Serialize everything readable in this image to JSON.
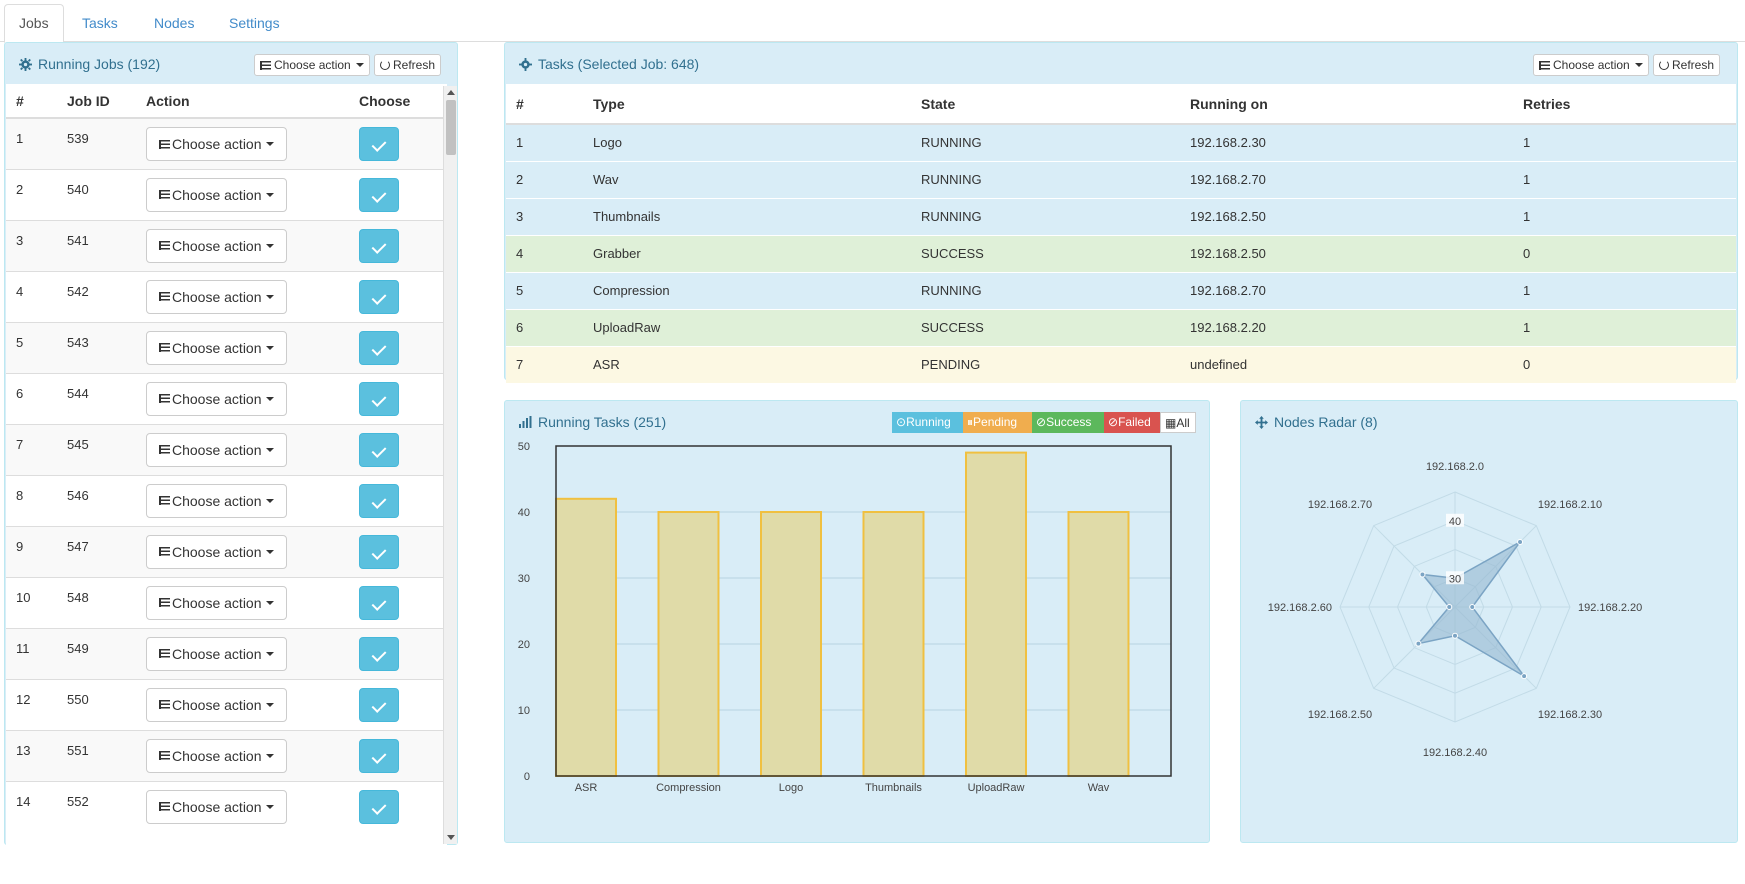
{
  "tabs": [
    {
      "label": "Jobs",
      "active": true
    },
    {
      "label": "Tasks",
      "active": false
    },
    {
      "label": "Nodes",
      "active": false
    },
    {
      "label": "Settings",
      "active": false
    }
  ],
  "jobs_panel": {
    "title": "Running Jobs (192)",
    "choose_action": "Choose action",
    "refresh": "Refresh",
    "columns": [
      "#",
      "Job ID",
      "Action",
      "Choose"
    ],
    "row_action_label": "Choose action",
    "rows": [
      {
        "n": "1",
        "job_id": "539"
      },
      {
        "n": "2",
        "job_id": "540"
      },
      {
        "n": "3",
        "job_id": "541"
      },
      {
        "n": "4",
        "job_id": "542"
      },
      {
        "n": "5",
        "job_id": "543"
      },
      {
        "n": "6",
        "job_id": "544"
      },
      {
        "n": "7",
        "job_id": "545"
      },
      {
        "n": "8",
        "job_id": "546"
      },
      {
        "n": "9",
        "job_id": "547"
      },
      {
        "n": "10",
        "job_id": "548"
      },
      {
        "n": "11",
        "job_id": "549"
      },
      {
        "n": "12",
        "job_id": "550"
      },
      {
        "n": "13",
        "job_id": "551"
      },
      {
        "n": "14",
        "job_id": "552"
      }
    ]
  },
  "tasks_panel": {
    "title": "Tasks (Selected Job: 648)",
    "choose_action": "Choose action",
    "refresh": "Refresh",
    "columns": [
      "#",
      "Type",
      "State",
      "Running on",
      "Retries"
    ],
    "rows": [
      {
        "n": "1",
        "type": "Logo",
        "state": "RUNNING",
        "running_on": "192.168.2.30",
        "retries": "1"
      },
      {
        "n": "2",
        "type": "Wav",
        "state": "RUNNING",
        "running_on": "192.168.2.70",
        "retries": "1"
      },
      {
        "n": "3",
        "type": "Thumbnails",
        "state": "RUNNING",
        "running_on": "192.168.2.50",
        "retries": "1"
      },
      {
        "n": "4",
        "type": "Grabber",
        "state": "SUCCESS",
        "running_on": "192.168.2.50",
        "retries": "0"
      },
      {
        "n": "5",
        "type": "Compression",
        "state": "RUNNING",
        "running_on": "192.168.2.70",
        "retries": "1"
      },
      {
        "n": "6",
        "type": "UploadRaw",
        "state": "SUCCESS",
        "running_on": "192.168.2.20",
        "retries": "1"
      },
      {
        "n": "7",
        "type": "ASR",
        "state": "PENDING",
        "running_on": "undefined",
        "retries": "0"
      }
    ]
  },
  "running_tasks_panel": {
    "title": "Running Tasks (251)",
    "filters": [
      {
        "label": "Running",
        "color": "#5bc0de"
      },
      {
        "label": "Pending",
        "color": "#f0ad4e"
      },
      {
        "label": "Success",
        "color": "#5cb85c"
      },
      {
        "label": "Failed",
        "color": "#d9534f"
      },
      {
        "label": "All",
        "color": "#ffffff"
      }
    ]
  },
  "nodes_panel": {
    "title": "Nodes Radar (8)"
  },
  "colors": {
    "panel_bg": "#d9edf7",
    "panel_border": "#bce8f1",
    "panel_title": "#31708f",
    "bar_fill": "#e0dba8",
    "bar_stroke": "#f0c040",
    "radar_fill": "#94b8d0",
    "radar_stroke": "#7ba4c4"
  },
  "chart_data": [
    {
      "type": "bar",
      "categories": [
        "ASR",
        "Compression",
        "Logo",
        "Thumbnails",
        "UploadRaw",
        "Wav"
      ],
      "values": [
        42,
        40,
        40,
        40,
        49,
        40
      ],
      "ylim": [
        0,
        50
      ],
      "yticks": [
        0,
        10,
        20,
        30,
        40,
        50
      ],
      "grid": true
    },
    {
      "type": "radar",
      "categories": [
        "192.168.2.0",
        "192.168.2.10",
        "192.168.2.20",
        "192.168.2.30",
        "192.168.2.40",
        "192.168.2.50",
        "192.168.2.60",
        "192.168.2.70"
      ],
      "values": [
        30,
        41,
        28,
        42,
        30,
        34,
        26,
        33
      ],
      "scale_min": 25,
      "scale_max": 45,
      "scale_step": 5,
      "tick_labels": [
        "30",
        "40"
      ]
    }
  ]
}
